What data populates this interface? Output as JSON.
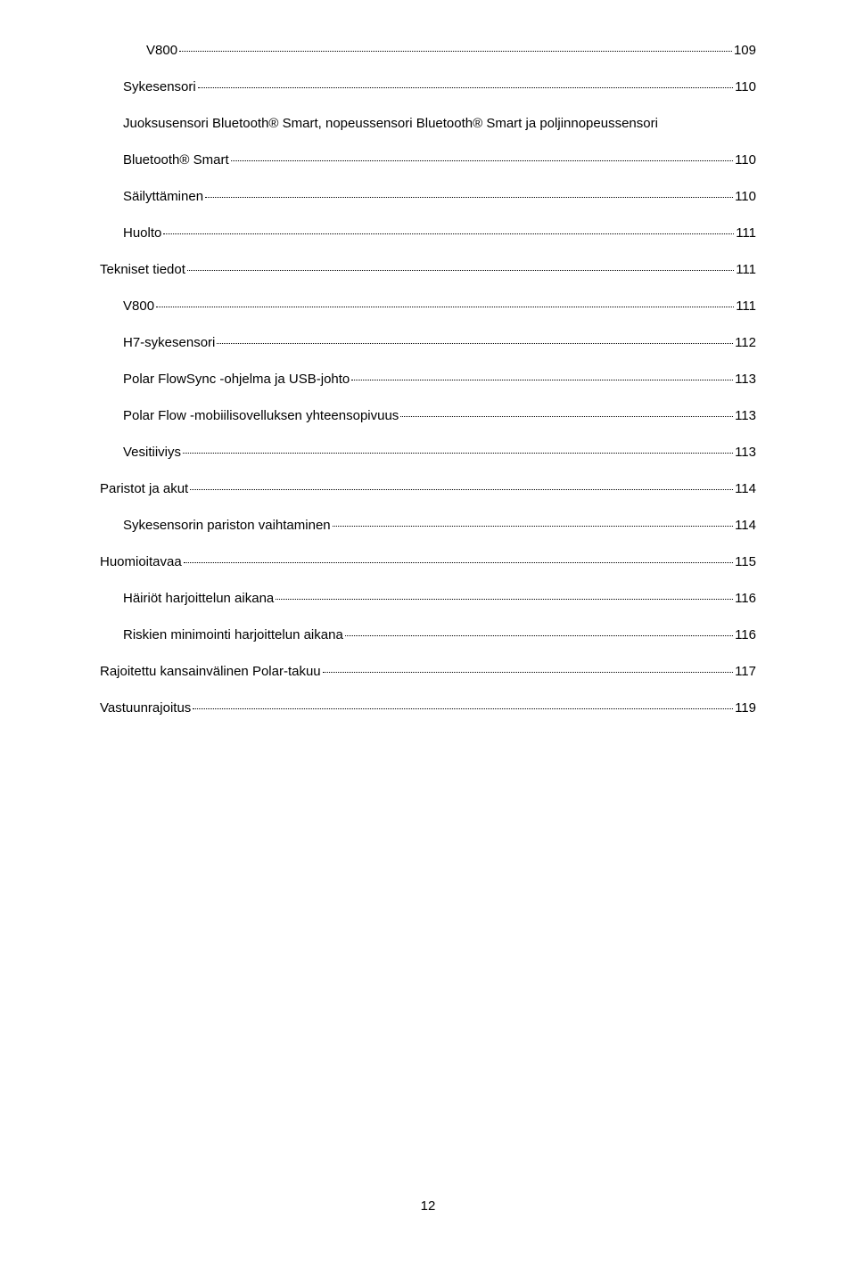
{
  "toc": {
    "entries": [
      {
        "title": "V800",
        "page": "109",
        "indent": 2
      },
      {
        "title": "Sykesensori",
        "page": "110",
        "indent": 1
      },
      {
        "title": "Juoksusensori Bluetooth® Smart, nopeussensori Bluetooth® Smart ja poljinnopeussensori",
        "page": "",
        "indent": 1
      },
      {
        "title": "Bluetooth® Smart",
        "page": "110",
        "indent": 1
      },
      {
        "title": "Säilyttäminen",
        "page": "110",
        "indent": 1
      },
      {
        "title": "Huolto",
        "page": "111",
        "indent": 1
      },
      {
        "title": "Tekniset tiedot",
        "page": "111",
        "indent": 0
      },
      {
        "title": "V800",
        "page": "111",
        "indent": 1
      },
      {
        "title": "H7-sykesensori",
        "page": "112",
        "indent": 1
      },
      {
        "title": "Polar FlowSync -ohjelma ja USB-johto",
        "page": "113",
        "indent": 1
      },
      {
        "title": "Polar Flow -mobiilisovelluksen yhteensopivuus",
        "page": "113",
        "indent": 1
      },
      {
        "title": "Vesitiiviys",
        "page": "113",
        "indent": 1
      },
      {
        "title": "Paristot ja akut",
        "page": "114",
        "indent": 0
      },
      {
        "title": "Sykesensorin pariston vaihtaminen",
        "page": "114",
        "indent": 1
      },
      {
        "title": "Huomioitavaa",
        "page": "115",
        "indent": 0
      },
      {
        "title": "Häiriöt harjoittelun aikana",
        "page": "116",
        "indent": 1
      },
      {
        "title": "Riskien minimointi harjoittelun aikana",
        "page": "116",
        "indent": 1
      },
      {
        "title": "Rajoitettu kansainvälinen Polar-takuu",
        "page": "117",
        "indent": 0
      },
      {
        "title": "Vastuunrajoitus",
        "page": "119",
        "indent": 0
      }
    ]
  },
  "page_number": "12"
}
